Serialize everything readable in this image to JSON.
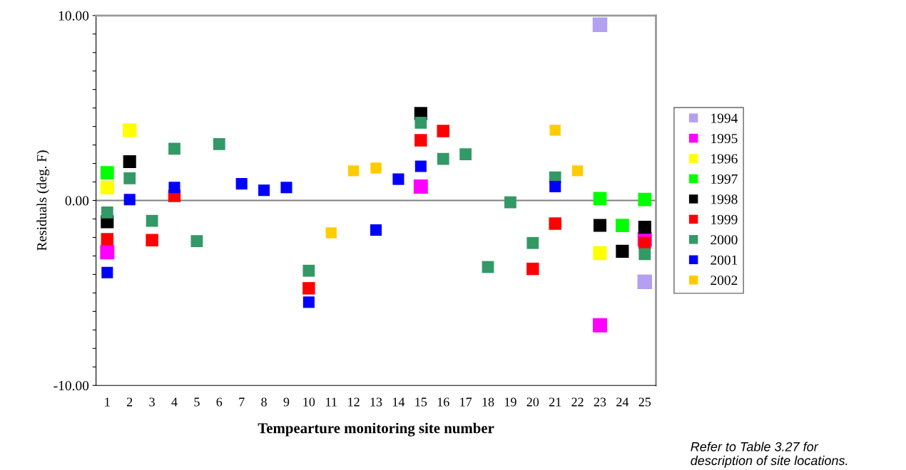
{
  "chart_data": {
    "type": "scatter",
    "xlabel": "Tempearture monitoring site number",
    "ylabel": "Residuals (deg. F)",
    "categories": [
      "1",
      "2",
      "3",
      "4",
      "5",
      "6",
      "7",
      "8",
      "9",
      "10",
      "11",
      "12",
      "13",
      "14",
      "15",
      "16",
      "17",
      "18",
      "19",
      "20",
      "21",
      "22",
      "23",
      "24",
      "25"
    ],
    "series": [
      {
        "name": "1994",
        "color": "#b4a0f0",
        "values": [
          null,
          null,
          null,
          null,
          null,
          null,
          null,
          null,
          null,
          null,
          null,
          null,
          null,
          null,
          null,
          null,
          null,
          null,
          null,
          null,
          null,
          null,
          9.5,
          null,
          -4.4
        ]
      },
      {
        "name": "1995",
        "color": "#ff00ff",
        "values": [
          -2.8,
          null,
          null,
          null,
          null,
          null,
          null,
          null,
          null,
          null,
          null,
          null,
          null,
          null,
          0.75,
          null,
          null,
          null,
          null,
          null,
          null,
          null,
          -6.75,
          null,
          -2.1
        ]
      },
      {
        "name": "1996",
        "color": "#ffff00",
        "values": [
          0.7,
          3.8,
          null,
          null,
          null,
          null,
          null,
          null,
          null,
          null,
          null,
          null,
          null,
          null,
          null,
          null,
          null,
          null,
          null,
          null,
          null,
          null,
          -2.85,
          null,
          null
        ]
      },
      {
        "name": "1997",
        "color": "#00ff00",
        "values": [
          1.5,
          null,
          null,
          null,
          null,
          null,
          null,
          null,
          null,
          null,
          null,
          null,
          null,
          null,
          null,
          null,
          null,
          null,
          null,
          null,
          null,
          null,
          0.1,
          -1.35,
          0.05
        ]
      },
      {
        "name": "1998",
        "color": "#000000",
        "values": [
          -1.15,
          2.1,
          null,
          null,
          null,
          null,
          null,
          null,
          null,
          null,
          null,
          null,
          null,
          null,
          4.7,
          null,
          null,
          null,
          null,
          null,
          null,
          null,
          -1.35,
          -2.75,
          -1.45
        ]
      },
      {
        "name": "1999",
        "color": "#ff0000",
        "values": [
          -2.1,
          null,
          -2.15,
          0.25,
          null,
          null,
          null,
          null,
          null,
          -4.75,
          null,
          null,
          null,
          null,
          3.25,
          3.75,
          null,
          null,
          null,
          -3.7,
          -1.25,
          null,
          null,
          null,
          -2.3
        ]
      },
      {
        "name": "2000",
        "color": "#339966",
        "values": [
          -0.65,
          1.2,
          -1.1,
          2.8,
          -2.2,
          3.05,
          null,
          null,
          null,
          -3.8,
          null,
          null,
          null,
          null,
          4.2,
          2.25,
          2.5,
          -3.6,
          -0.1,
          -2.3,
          1.25,
          null,
          null,
          null,
          -2.9
        ]
      },
      {
        "name": "2001",
        "color": "#0000ff",
        "values": [
          -3.9,
          0.05,
          null,
          0.7,
          null,
          null,
          0.9,
          0.55,
          0.7,
          -5.5,
          null,
          null,
          -1.6,
          1.15,
          1.85,
          null,
          null,
          null,
          null,
          null,
          0.75,
          null,
          null,
          null,
          null
        ]
      },
      {
        "name": "2002",
        "color": "#ffcc00",
        "values": [
          null,
          null,
          null,
          null,
          null,
          null,
          null,
          null,
          null,
          null,
          -1.75,
          1.6,
          1.75,
          null,
          null,
          null,
          null,
          null,
          null,
          null,
          3.8,
          1.6,
          null,
          null,
          null
        ]
      }
    ],
    "ylim": [
      -10,
      10
    ],
    "yticks": [
      {
        "value": -10,
        "label": "-10.00"
      },
      {
        "value": -9,
        "label": null
      },
      {
        "value": -8,
        "label": null
      },
      {
        "value": -7,
        "label": null
      },
      {
        "value": -6,
        "label": null
      },
      {
        "value": -5,
        "label": null
      },
      {
        "value": -4,
        "label": null
      },
      {
        "value": -3,
        "label": null
      },
      {
        "value": -2,
        "label": null
      },
      {
        "value": -1,
        "label": null
      },
      {
        "value": 0,
        "label": "0.00"
      },
      {
        "value": 1,
        "label": null
      },
      {
        "value": 2,
        "label": null
      },
      {
        "value": 3,
        "label": null
      },
      {
        "value": 4,
        "label": null
      },
      {
        "value": 5,
        "label": null
      },
      {
        "value": 6,
        "label": null
      },
      {
        "value": 7,
        "label": null
      },
      {
        "value": 8,
        "label": null
      },
      {
        "value": 9,
        "label": null
      },
      {
        "value": 10,
        "label": "10.00"
      }
    ],
    "ref_lines": [
      {
        "axis": "y",
        "value": 0,
        "color": "#808080"
      }
    ],
    "marker": "square",
    "grid": false,
    "legend": "right",
    "annotations": [
      "Refer to Table 3.27 for\ndescription of site locations."
    ]
  }
}
